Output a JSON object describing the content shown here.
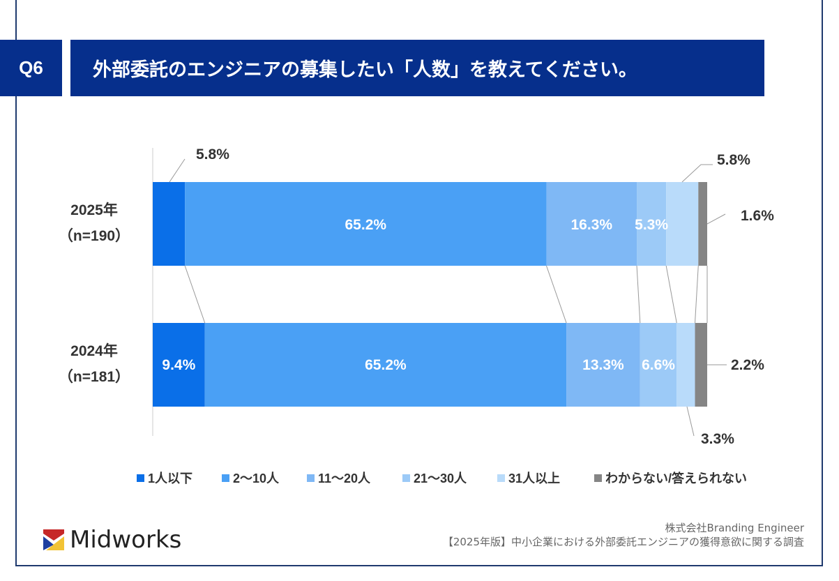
{
  "header": {
    "q_label": "Q6",
    "title": "外部委託のエンジニアの募集したい「人数」を教えてください。"
  },
  "chart_data": {
    "type": "stacked-bar-horizontal",
    "categories": [
      {
        "year": "2025年",
        "n": "（n=190）"
      },
      {
        "year": "2024年",
        "n": "（n=181）"
      }
    ],
    "xlim": [
      0,
      100
    ],
    "series": [
      {
        "name": "1人以下",
        "color": "#0a6fe8",
        "values": [
          5.8,
          9.4
        ]
      },
      {
        "name": "2〜10人",
        "color": "#4aa0f5",
        "values": [
          65.2,
          65.2
        ]
      },
      {
        "name": "11〜20人",
        "color": "#7fb8f5",
        "values": [
          16.3,
          13.3
        ]
      },
      {
        "name": "21〜30人",
        "color": "#9ccaf7",
        "values": [
          5.3,
          6.6
        ]
      },
      {
        "name": "31人以上",
        "color": "#b9dbfa",
        "values": [
          5.8,
          3.3
        ]
      },
      {
        "name": "わからない/答えられない",
        "color": "#858585",
        "values": [
          1.6,
          2.2
        ]
      }
    ],
    "legend": "bottom"
  },
  "footer": {
    "logo": "Midworks",
    "company": "株式会社Branding Engineer",
    "survey": "【2025年版】中小企業における外部委託エンジニアの獲得意欲に関する調査"
  }
}
